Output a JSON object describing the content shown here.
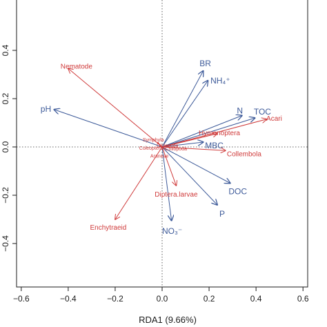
{
  "chart_data": {
    "type": "scatter",
    "subtype": "rda-biplot",
    "xlabel": "RDA1 (9.66%)",
    "ylabel": "",
    "xlim": [
      -0.62,
      0.62
    ],
    "ylim": [
      -0.58,
      0.62
    ],
    "xticks": [
      "−0.6",
      "−0.4",
      "−0.2",
      "0.0",
      "0.2",
      "0.4",
      "0.6"
    ],
    "yticks": [
      "−0.4",
      "−0.2",
      "0.0",
      "0.2",
      "0.4"
    ],
    "zero_lines": true,
    "colors": {
      "environment": "#3d5a99",
      "taxa": "#cf3a3a",
      "axis": "#1a1a1a"
    },
    "series": [
      {
        "name": "environment",
        "vectors": [
          {
            "label": "BR",
            "x": 0.175,
            "y": 0.315
          },
          {
            "label": "NH₄⁺",
            "x": 0.195,
            "y": 0.275
          },
          {
            "label": "pH",
            "x": -0.46,
            "y": 0.155
          },
          {
            "label": "N",
            "x": 0.34,
            "y": 0.13
          },
          {
            "label": "TOC",
            "x": 0.395,
            "y": 0.12
          },
          {
            "label": "MBC",
            "x": 0.175,
            "y": 0.02
          },
          {
            "label": "DOC",
            "x": 0.29,
            "y": -0.15
          },
          {
            "label": "P",
            "x": 0.235,
            "y": -0.24
          },
          {
            "label": "NO₃⁻",
            "x": 0.04,
            "y": -0.305
          }
        ]
      },
      {
        "name": "taxa",
        "vectors": [
          {
            "label": "Nematode",
            "x": -0.4,
            "y": 0.325
          },
          {
            "label": "Hymenoptera",
            "x": 0.235,
            "y": 0.055
          },
          {
            "label": "Acari",
            "x": 0.445,
            "y": 0.115
          },
          {
            "label": "Collembola",
            "x": 0.27,
            "y": -0.015
          },
          {
            "label": "Diptera.larvae",
            "x": 0.06,
            "y": -0.16
          },
          {
            "label": "Enchytraeid",
            "x": -0.2,
            "y": -0.3
          },
          {
            "label": "Symphyla",
            "x": -0.02,
            "y": 0.02
          },
          {
            "label": "Coleoptera",
            "x": -0.015,
            "y": 0.0
          },
          {
            "label": "Araneae",
            "x": 0.015,
            "y": -0.01
          },
          {
            "label": "Diplopoda",
            "x": 0.02,
            "y": 0.005
          },
          {
            "label": "Chilopoda",
            "x": 0.03,
            "y": 0.0
          }
        ]
      }
    ]
  }
}
